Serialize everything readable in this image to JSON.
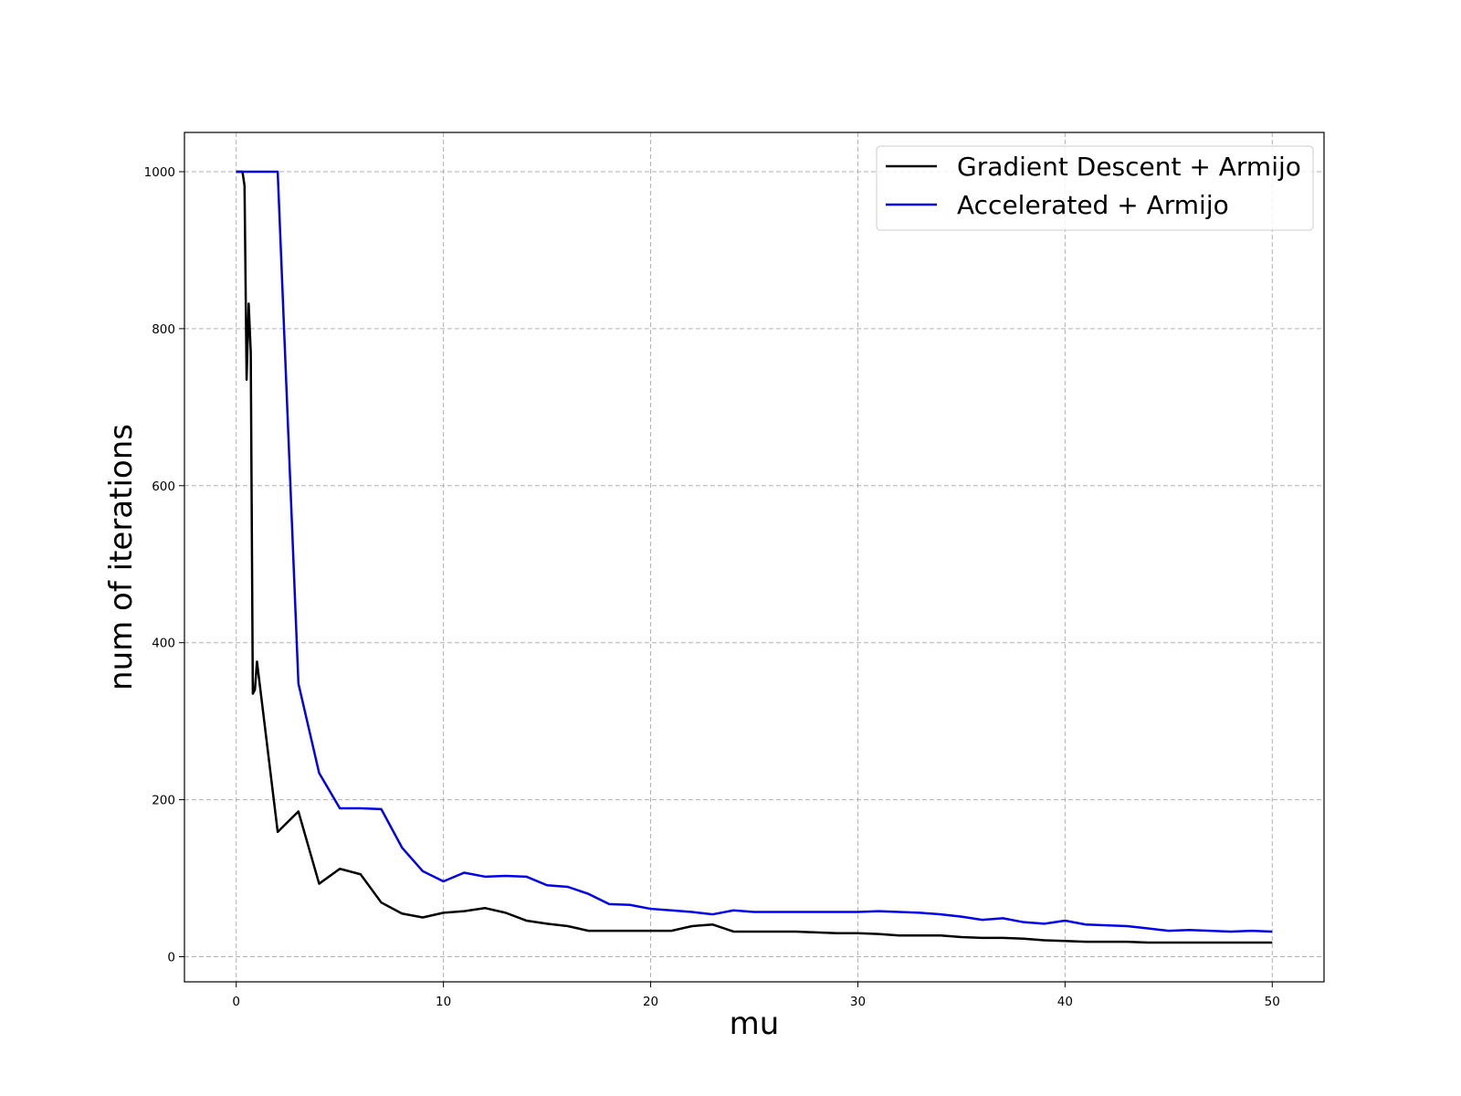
{
  "chart_data": {
    "type": "line",
    "title": "",
    "xlabel": "mu",
    "ylabel": "num of iterations",
    "xlim": [
      -2.5,
      52.5
    ],
    "ylim": [
      -32,
      1050
    ],
    "xticks": [
      0,
      10,
      20,
      30,
      40,
      50
    ],
    "yticks": [
      0,
      200,
      400,
      600,
      800,
      1000
    ],
    "grid": true,
    "legend_position": "top-right",
    "series": [
      {
        "name": "Gradient Descent + Armijo",
        "color": "#000000",
        "points": [
          [
            0,
            1000
          ],
          [
            0.2,
            1000
          ],
          [
            0.3,
            1000
          ],
          [
            0.4,
            982
          ],
          [
            0.5,
            735
          ],
          [
            0.6,
            832
          ],
          [
            0.7,
            770
          ],
          [
            0.8,
            335
          ],
          [
            0.9,
            340
          ],
          [
            1,
            376
          ],
          [
            2,
            159
          ],
          [
            3,
            185
          ],
          [
            4,
            93
          ],
          [
            5,
            112
          ],
          [
            6,
            105
          ],
          [
            7,
            69
          ],
          [
            8,
            55
          ],
          [
            9,
            50
          ],
          [
            10,
            56
          ],
          [
            11,
            58
          ],
          [
            12,
            62
          ],
          [
            13,
            56
          ],
          [
            14,
            46
          ],
          [
            15,
            42
          ],
          [
            16,
            39
          ],
          [
            17,
            33
          ],
          [
            18,
            33
          ],
          [
            19,
            33
          ],
          [
            20,
            33
          ],
          [
            21,
            33
          ],
          [
            22,
            39
          ],
          [
            23,
            41
          ],
          [
            24,
            32
          ],
          [
            25,
            32
          ],
          [
            26,
            32
          ],
          [
            27,
            32
          ],
          [
            28,
            31
          ],
          [
            29,
            30
          ],
          [
            30,
            30
          ],
          [
            31,
            29
          ],
          [
            32,
            27
          ],
          [
            33,
            27
          ],
          [
            34,
            27
          ],
          [
            35,
            25
          ],
          [
            36,
            24
          ],
          [
            37,
            24
          ],
          [
            38,
            23
          ],
          [
            39,
            21
          ],
          [
            40,
            20
          ],
          [
            41,
            19
          ],
          [
            42,
            19
          ],
          [
            43,
            19
          ],
          [
            44,
            18
          ],
          [
            45,
            18
          ],
          [
            46,
            18
          ],
          [
            47,
            18
          ],
          [
            48,
            18
          ],
          [
            49,
            18
          ],
          [
            50,
            18
          ]
        ]
      },
      {
        "name": "Accelerated + Armijo",
        "color": "#0000ee",
        "points": [
          [
            0,
            1000
          ],
          [
            1,
            1000
          ],
          [
            2,
            1000
          ],
          [
            3,
            348
          ],
          [
            4,
            234
          ],
          [
            5,
            189
          ],
          [
            6,
            189
          ],
          [
            7,
            188
          ],
          [
            8,
            139
          ],
          [
            9,
            109
          ],
          [
            10,
            96
          ],
          [
            11,
            107
          ],
          [
            12,
            102
          ],
          [
            13,
            103
          ],
          [
            14,
            102
          ],
          [
            15,
            91
          ],
          [
            16,
            89
          ],
          [
            17,
            80
          ],
          [
            18,
            67
          ],
          [
            19,
            66
          ],
          [
            20,
            61
          ],
          [
            21,
            59
          ],
          [
            22,
            57
          ],
          [
            23,
            54
          ],
          [
            24,
            59
          ],
          [
            25,
            57
          ],
          [
            26,
            57
          ],
          [
            27,
            57
          ],
          [
            28,
            57
          ],
          [
            29,
            57
          ],
          [
            30,
            57
          ],
          [
            31,
            58
          ],
          [
            32,
            57
          ],
          [
            33,
            56
          ],
          [
            34,
            54
          ],
          [
            35,
            51
          ],
          [
            36,
            47
          ],
          [
            37,
            49
          ],
          [
            38,
            44
          ],
          [
            39,
            42
          ],
          [
            40,
            46
          ],
          [
            41,
            41
          ],
          [
            42,
            40
          ],
          [
            43,
            39
          ],
          [
            44,
            36
          ],
          [
            45,
            33
          ],
          [
            46,
            34
          ],
          [
            47,
            33
          ],
          [
            48,
            32
          ],
          [
            49,
            33
          ],
          [
            50,
            32
          ]
        ]
      }
    ]
  }
}
